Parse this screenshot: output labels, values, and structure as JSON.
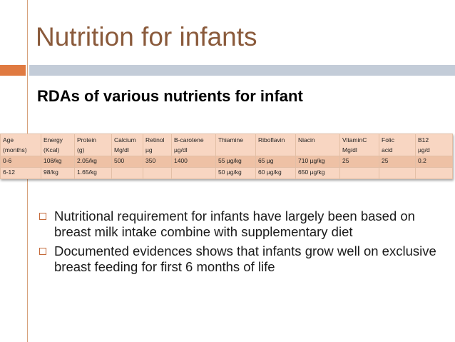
{
  "slide": {
    "title": "Nutrition for infants",
    "subtitle": "RDAs of various nutrients for infant",
    "accent_colors": {
      "title": "#8a5a3b",
      "orange_bar": "#e07a41",
      "blue_bar": "#c3ccd8",
      "table_header": "#f8d6c2",
      "table_band": "#eec1a5"
    }
  },
  "table": {
    "headers": [
      [
        "Age",
        "(months)"
      ],
      [
        "Energy",
        "(Kcal)"
      ],
      [
        "Protein",
        "(g)"
      ],
      [
        "Calcium",
        "Mg/dl"
      ],
      [
        "Retinol",
        "µg"
      ],
      [
        "B-carotene",
        "µg/dl"
      ],
      [
        "Thiamine",
        ""
      ],
      [
        "Riboflavin",
        ""
      ],
      [
        "Niacin",
        ""
      ],
      [
        "VitaminC",
        "Mg/dl"
      ],
      [
        "Folic",
        "acid"
      ],
      [
        "B12",
        "µg/d"
      ]
    ],
    "rows": [
      [
        "0-6",
        "108/kg",
        "2.05/kg",
        "500",
        "350",
        "1400",
        "55 µg/kg",
        "65 µg",
        "710 µg/kg",
        "25",
        "25",
        "0.2"
      ],
      [
        "6-12",
        "98/kg",
        "1.65/kg",
        "",
        "",
        "",
        "50 µg/kg",
        "60 µg/kg",
        "650 µg/kg",
        "",
        "",
        ""
      ]
    ]
  },
  "bullets": [
    {
      "text": "Nutritional requirement for infants have largely been based on breast milk intake combine with supplementary diet",
      "marker_icon": "hollow-square-icon"
    },
    {
      "text": "Documented evidences shows that infants grow well on exclusive breast feeding for first 6 months of life",
      "marker_icon": "hollow-square-icon"
    }
  ]
}
